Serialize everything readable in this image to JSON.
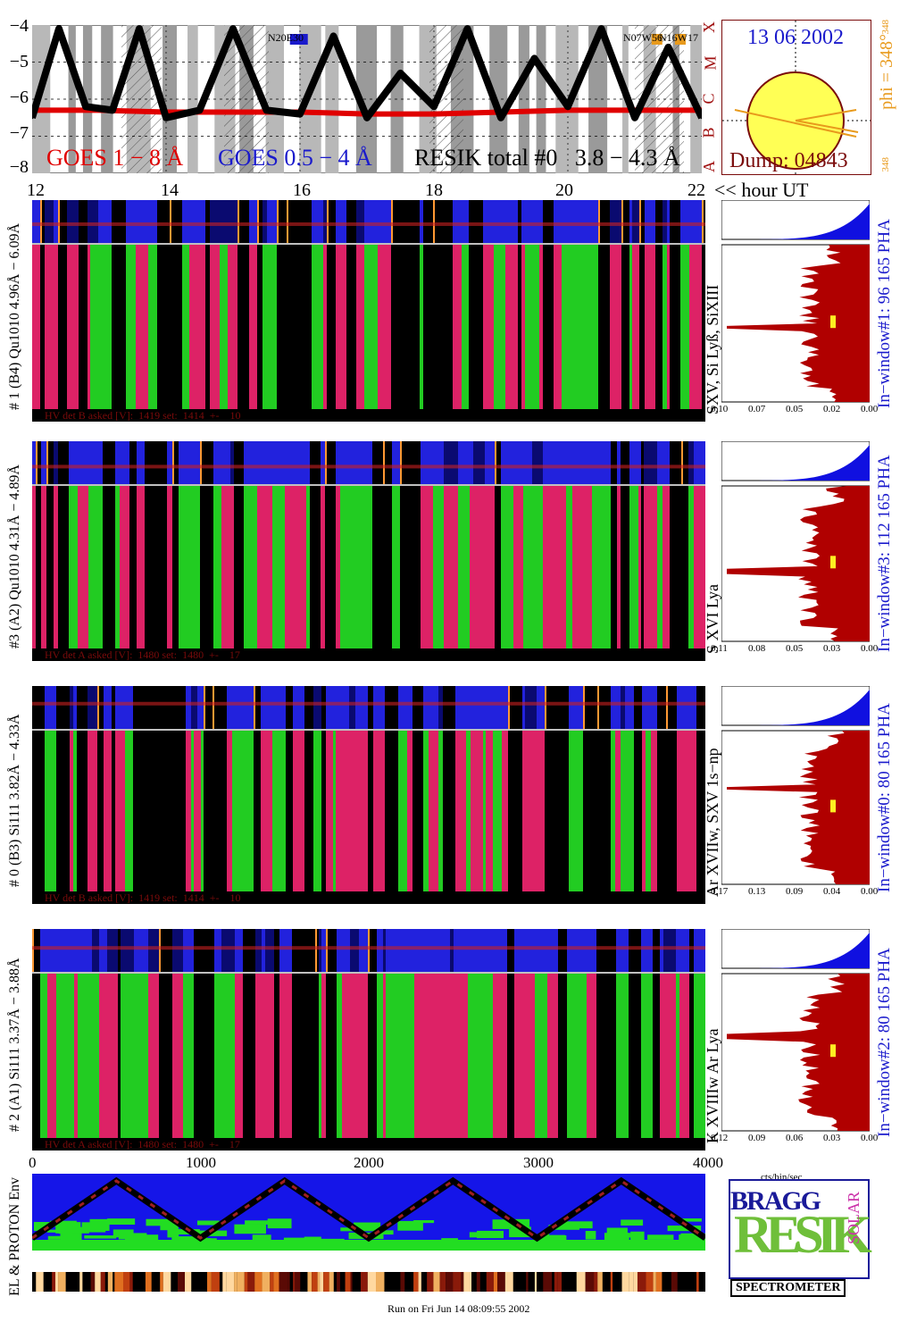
{
  "goes_panel": {
    "y_ticks": [
      "−4",
      "−5",
      "−6",
      "−7",
      "−8"
    ],
    "class_letters": [
      "X",
      "M",
      "C",
      "B",
      "A"
    ],
    "legend_goes_long": "GOES 1 − 8 Å",
    "legend_goes_short": "GOES 0.5 − 4 Å",
    "legend_resik": "RESIK total #0   3.8 − 4.3 Å",
    "region_label_1": "N20E30",
    "region_label_2": "N07W56",
    "region_label_3": "N16W17",
    "x_ticks": [
      "12",
      "14",
      "16",
      "18",
      "20",
      "22"
    ],
    "x_unit": "<< hour UT"
  },
  "sun_panel": {
    "date": "13 06 2002",
    "dump": "Dump: 04843",
    "phi": "phi = 348°",
    "phi_small_top": "348",
    "phi_small_bottom": "348"
  },
  "channels": [
    {
      "id": "ch1",
      "label": "# 1 (B4) Qu1010 4.96Å − 6.09Å",
      "lines": "SXV, Si Lyß, SiXIII",
      "hv": "HV det B asked [V]:  1419 set:  1414  +-    10",
      "window": "In−window#1:   96 165  PHA",
      "ticks": [
        "0.10",
        "0.07",
        "0.05",
        "0.02",
        "0.00"
      ]
    },
    {
      "id": "ch3",
      "label": "#3 (A2) Qu1010  4.31Å − 4.89Å",
      "lines": "S XVI Lya",
      "hv": "HV det A asked [V]:  1480 set:  1480  +-    17",
      "window": "In−window#3:  112 165 PHA",
      "ticks": [
        "0.11",
        "0.08",
        "0.05",
        "0.03",
        "0.00"
      ]
    },
    {
      "id": "ch0",
      "label": "# 0 (B3) Si111  3.82Å − 4.33Å",
      "lines": "Ar XVIIw,  SXV 1s−np",
      "hv": "HV det B asked [V]:  1419 set:  1414  +-    10",
      "window": "In−window#0:   80 165  PHA",
      "ticks": [
        "0.17",
        "0.13",
        "0.09",
        "0.04",
        "0.00"
      ]
    },
    {
      "id": "ch2",
      "label": "# 2 (A1) Si111  3.37Å − 3.88Å",
      "lines": "K XVIIIw  Ar Lya",
      "hv": "HV det A asked [V]:  1480 set:  1480  +-    17",
      "window": "In−window#2:   80 165  PHA",
      "ticks": [
        "0.12",
        "0.09",
        "0.06",
        "0.03",
        "0.00"
      ]
    }
  ],
  "bottom_axis": {
    "ticks": [
      "0",
      "1000",
      "2000",
      "3000",
      "4000"
    ],
    "pha_unit": "cts/bin/sec"
  },
  "env_panel": {
    "label": "EL & PROTON Env"
  },
  "logo": {
    "word_bragg": "BRAGG",
    "word_resik": "RESIK",
    "word_solar": "SOLAR",
    "word_spectrometer": "SPECTROMETER"
  },
  "footer": {
    "run": "Run on Fri Jun 14 08:09:55 2002"
  },
  "colors": {
    "goes_long": "#e00000",
    "goes_short": "#1a1acc",
    "resik": "#000000",
    "sun": "#ffff55",
    "pha_fill": "#b00000",
    "pha_top": "#1010e0",
    "env_blue": "#1515e8",
    "env_green": "#22dd22"
  },
  "chart_data": {
    "type": "line",
    "title": "",
    "xlabel": "<< hour UT",
    "ylabel": "",
    "xlim": [
      12,
      22
    ],
    "ylim": [
      -8,
      -4
    ],
    "series": [
      {
        "name": "GOES 1 − 8 Å",
        "x": [
          12,
          13,
          14,
          15,
          16,
          17,
          18,
          19,
          20,
          21,
          22
        ],
        "y": [
          -6.3,
          -6.3,
          -6.35,
          -6.35,
          -6.35,
          -6.4,
          -6.4,
          -6.35,
          -6.3,
          -6.3,
          -6.3
        ]
      },
      {
        "name": "RESIK total #0   3.8 − 4.3 Å",
        "x": [
          12,
          12.4,
          12.8,
          13.2,
          13.6,
          14,
          14.5,
          15,
          15.5,
          16,
          16.5,
          17,
          17.5,
          18,
          18.5,
          19,
          19.5,
          20,
          20.5,
          21,
          21.5,
          22
        ],
        "y": [
          -6.5,
          -4.1,
          -6.2,
          -6.3,
          -4.1,
          -6.5,
          -6.3,
          -4.1,
          -6.3,
          -6.4,
          -4.3,
          -6.5,
          -5.3,
          -6.2,
          -4.1,
          -6.5,
          -4.9,
          -6.2,
          -4.1,
          -6.5,
          -4.6,
          -6.5
        ]
      }
    ]
  }
}
